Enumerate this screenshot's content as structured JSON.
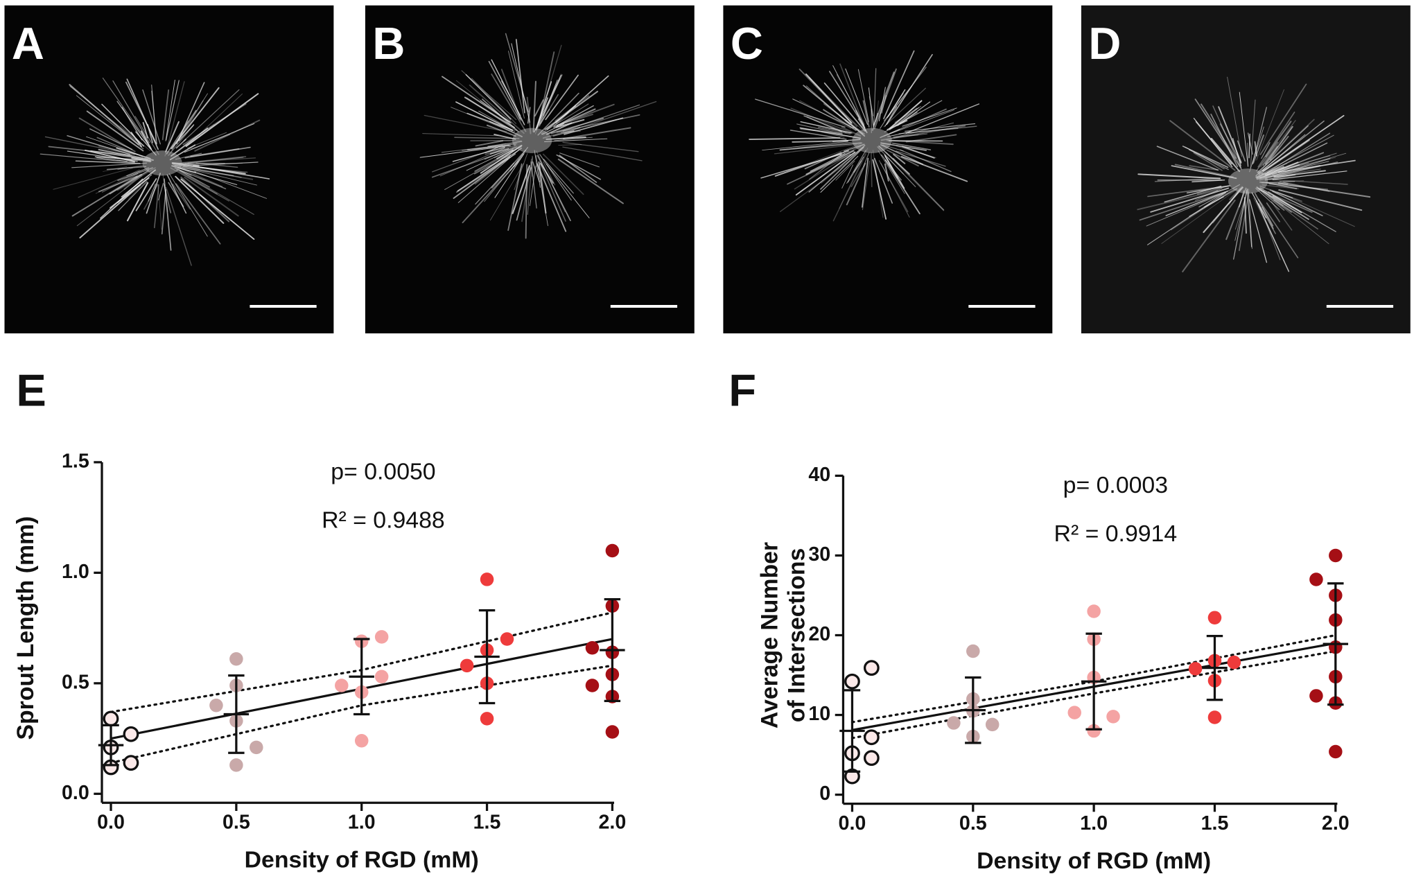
{
  "images": [
    {
      "label": "A"
    },
    {
      "label": "B"
    },
    {
      "label": "C"
    },
    {
      "label": "D"
    }
  ],
  "chart_data": [
    {
      "type": "scatter",
      "panel_label": "E",
      "xlabel": "Density of RGD (mM)",
      "ylabel": [
        "Sprout Length (mm)"
      ],
      "annotations": [
        "p= 0.0050",
        "R² = 0.9488"
      ],
      "xlim": [
        0,
        2
      ],
      "xticks": [
        {
          "value": 0,
          "label": "0.0"
        },
        0.5,
        {
          "value": 1,
          "label": "1.0"
        },
        1.5,
        {
          "value": 2,
          "label": "2.0"
        }
      ],
      "ylim": [
        0,
        1.5
      ],
      "yticks": [
        {
          "value": 0,
          "label": "0.0"
        },
        0.5,
        {
          "value": 1,
          "label": "1.0"
        },
        1.5
      ],
      "series": [
        {
          "color": "#fbe9e9",
          "x": [
            0,
            0.08,
            0,
            0.08,
            0
          ],
          "values": [
            0.34,
            0.27,
            0.21,
            0.14,
            0.12
          ]
        },
        {
          "color": "#c9a9a9",
          "x": [
            0.42,
            0.5,
            0.5,
            0.5,
            0.58,
            0.5
          ],
          "values": [
            0.4,
            0.61,
            0.49,
            0.33,
            0.21,
            0.13
          ]
        },
        {
          "color": "#f4a3a3",
          "x": [
            0.92,
            1,
            1.08,
            1.08,
            1,
            1
          ],
          "values": [
            0.49,
            0.69,
            0.71,
            0.53,
            0.46,
            0.24
          ]
        },
        {
          "color": "#ee3b3b",
          "x": [
            1.5,
            1.5,
            1.58,
            1.42,
            1.5,
            1.5
          ],
          "values": [
            0.97,
            0.65,
            0.7,
            0.58,
            0.5,
            0.34
          ]
        },
        {
          "color": "#a50f15",
          "x": [
            2,
            2,
            2,
            1.92,
            2,
            1.92,
            2,
            2
          ],
          "values": [
            1.1,
            0.85,
            0.64,
            0.66,
            0.54,
            0.49,
            0.44,
            0.28
          ]
        }
      ],
      "errorbars": {
        "x": [
          0,
          0.5,
          1,
          1.5,
          2
        ],
        "mean": [
          0.22,
          0.36,
          0.53,
          0.62,
          0.65
        ],
        "sd": [
          0.09,
          0.175,
          0.17,
          0.21,
          0.23
        ]
      },
      "fit": {
        "x": [
          0,
          2
        ],
        "values": [
          0.25,
          0.7
        ]
      },
      "ci": {
        "x": [
          0,
          1,
          2
        ],
        "upper": [
          0.37,
          0.56,
          0.82
        ],
        "lower": [
          0.14,
          0.4,
          0.58
        ]
      }
    },
    {
      "type": "scatter",
      "panel_label": "F",
      "xlabel": "Density of RGD (mM)",
      "ylabel": [
        "Average Number",
        "of Intersections"
      ],
      "annotations": [
        "p= 0.0003",
        "R² = 0.9914"
      ],
      "xlim": [
        0,
        2
      ],
      "xticks": [
        {
          "value": 0,
          "label": "0.0"
        },
        0.5,
        {
          "value": 1,
          "label": "1.0"
        },
        1.5,
        {
          "value": 2,
          "label": "2.0"
        }
      ],
      "ylim": [
        0,
        40
      ],
      "yticks": [
        0,
        10,
        20,
        30,
        40
      ],
      "series": [
        {
          "color": "#fbe9e9",
          "x": [
            0,
            0.08,
            0.08,
            0,
            0.08,
            0
          ],
          "values": [
            14.2,
            15.9,
            7.2,
            5.2,
            4.6,
            2.3
          ]
        },
        {
          "color": "#c9a9a9",
          "x": [
            0.5,
            0.5,
            0.42,
            0.5,
            0.5,
            0.58
          ],
          "values": [
            18,
            12,
            9,
            10.5,
            7.3,
            8.8
          ]
        },
        {
          "color": "#f4a3a3",
          "x": [
            1,
            1,
            1,
            0.92,
            1.08,
            1
          ],
          "values": [
            23,
            19.5,
            14.7,
            10.3,
            9.8,
            8
          ]
        },
        {
          "color": "#ee3b3b",
          "x": [
            1.5,
            1.5,
            1.58,
            1.42,
            1.5,
            1.5
          ],
          "values": [
            22.2,
            16.8,
            16.6,
            15.8,
            14.3,
            9.7
          ]
        },
        {
          "color": "#a50f15",
          "x": [
            2,
            1.92,
            2,
            2,
            2,
            1.92,
            2,
            2,
            2
          ],
          "values": [
            30,
            27,
            25,
            21.9,
            18.5,
            12.4,
            14.8,
            11.5,
            5.4
          ]
        }
      ],
      "errorbars": {
        "x": [
          0,
          0.5,
          1,
          1.5,
          2
        ],
        "mean": [
          8,
          10.6,
          14.2,
          15.9,
          18.9
        ],
        "sd": [
          5.1,
          4.1,
          6,
          4,
          7.6
        ]
      },
      "fit": {
        "x": [
          0,
          2
        ],
        "values": [
          8.1,
          19
        ]
      },
      "ci": {
        "x": [
          0,
          1,
          2
        ],
        "upper": [
          9.1,
          14.2,
          20
        ],
        "lower": [
          7.1,
          12.7,
          18
        ]
      }
    }
  ]
}
